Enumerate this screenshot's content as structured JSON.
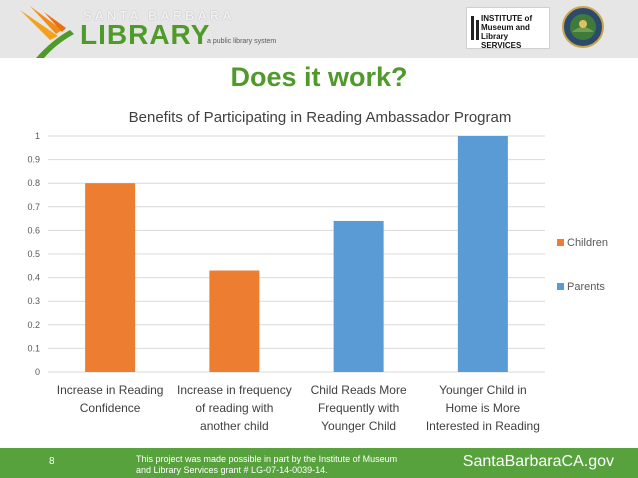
{
  "header": {
    "logo_top": "SANTA BARBARA",
    "logo_main": "LIBRARY",
    "logo_tagline": "a public library system",
    "imls_text": "INSTITUTE of Museum and Library SERVICES"
  },
  "page_title": "Does it work?",
  "footer": {
    "page_number": "8",
    "note_line1": "This project was made possible in part by the Institute of Museum",
    "note_line2": "and Library Services grant # LG-07-14-0039-14.",
    "site": "SantaBarbaraCA.gov"
  },
  "colors": {
    "brand_green": "#4f9a2a",
    "footer_green": "#58a23e",
    "children": "#ed7d31",
    "parents": "#5b9bd5"
  },
  "chart_data": {
    "type": "bar",
    "title": "Benefits of Participating in Reading Ambassador Program",
    "ylim": [
      0,
      1
    ],
    "yticks": [
      "0",
      "0.1",
      "0.2",
      "0.3",
      "0.4",
      "0.5",
      "0.6",
      "0.7",
      "0.8",
      "0.9",
      "1"
    ],
    "categories": [
      [
        "Increase in Reading",
        "Confidence"
      ],
      [
        "Increase in frequency",
        "of reading with",
        "another child"
      ],
      [
        "Child Reads More",
        "Frequently with",
        "Younger Child"
      ],
      [
        "Younger Child in",
        "Home is More",
        "Interested in Reading"
      ]
    ],
    "series": [
      {
        "name": "Children",
        "values": [
          0.8,
          0.43,
          null,
          null
        ]
      },
      {
        "name": "Parents",
        "values": [
          null,
          null,
          0.64,
          1.0
        ]
      }
    ],
    "grid": true,
    "legend": "right"
  }
}
